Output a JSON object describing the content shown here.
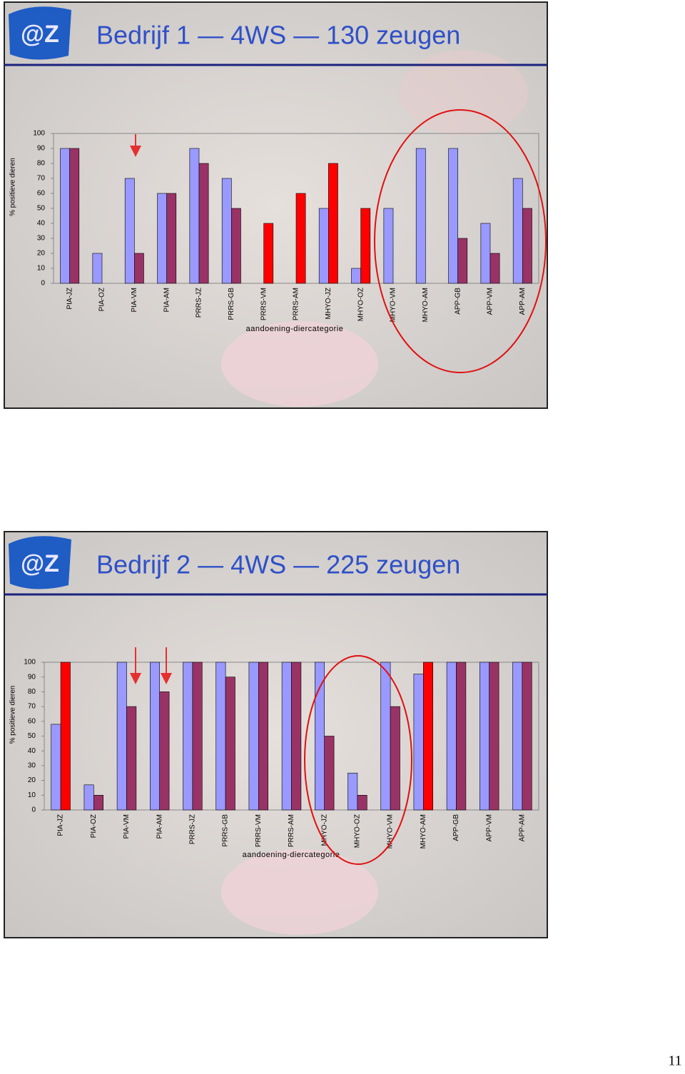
{
  "chart_data": [
    {
      "type": "bar",
      "title": "Bedrijf 1 — 4WS — 130 zeugen",
      "x_label": "aandoening-diercategorie",
      "y_label": "% positieve dieren",
      "categories": [
        "PIA-JZ",
        "PIA-OZ",
        "PIA-VM",
        "PIA-AM",
        "PRRS-JZ",
        "PRRS-GB",
        "PRRS-VM",
        "PRRS-AM",
        "MHYO-JZ",
        "MHYO-OZ",
        "MHYO-VM",
        "MHYO-AM",
        "APP-GB",
        "APP-VM",
        "APP-AM"
      ],
      "series": [
        {
          "color": "#9999ff",
          "values": [
            90,
            20,
            70,
            60,
            90,
            70,
            null,
            null,
            50,
            10,
            50,
            90,
            90,
            40,
            70
          ]
        },
        {
          "color": "#993366",
          "values": [
            90,
            null,
            20,
            60,
            80,
            50,
            40,
            60,
            80,
            50,
            null,
            null,
            30,
            20,
            50
          ],
          "colors": [
            "#993366",
            "#993366",
            "#993366",
            "#993366",
            "#993366",
            "#993366",
            "#ff0000",
            "#ff0000",
            "#ff0000",
            "#ff0000",
            "#993366",
            "#993366",
            "#993366",
            "#993366",
            "#993366"
          ]
        }
      ],
      "ylim": [
        0,
        100
      ],
      "yticks": [
        0,
        10,
        20,
        30,
        40,
        50,
        60,
        70,
        80,
        90,
        100
      ]
    },
    {
      "type": "bar",
      "title": "Bedrijf 2 — 4WS — 225 zeugen",
      "x_label": "aandoening-diercategorie",
      "y_label": "% positieve dieren",
      "categories": [
        "PIA-JZ",
        "PIA-OZ",
        "PIA-VM",
        "PIA-AM",
        "PRRS-JZ",
        "PRRS-GB",
        "PRRS-VM",
        "PRRS-AM",
        "MHYO-JZ",
        "MHYO-OZ",
        "MHYO-VM",
        "MHYO-AM",
        "APP-GB",
        "APP-VM",
        "APP-AM"
      ],
      "series": [
        {
          "color": "#9999ff",
          "values": [
            58,
            17,
            100,
            100,
            100,
            100,
            100,
            100,
            100,
            25,
            100,
            92,
            100,
            100,
            100
          ]
        },
        {
          "color": "#993366",
          "values": [
            100,
            10,
            70,
            80,
            100,
            90,
            100,
            100,
            50,
            10,
            70,
            100,
            100,
            100,
            100
          ],
          "colors": [
            "#ff0000",
            "#993366",
            "#993366",
            "#993366",
            "#993366",
            "#993366",
            "#993366",
            "#993366",
            "#993366",
            "#993366",
            "#993366",
            "#ff0000",
            "#993366",
            "#993366",
            "#993366"
          ]
        }
      ],
      "ylim": [
        0,
        100
      ],
      "yticks": [
        0,
        10,
        20,
        30,
        40,
        50,
        60,
        70,
        80,
        90,
        100
      ]
    }
  ],
  "page_number": "11"
}
